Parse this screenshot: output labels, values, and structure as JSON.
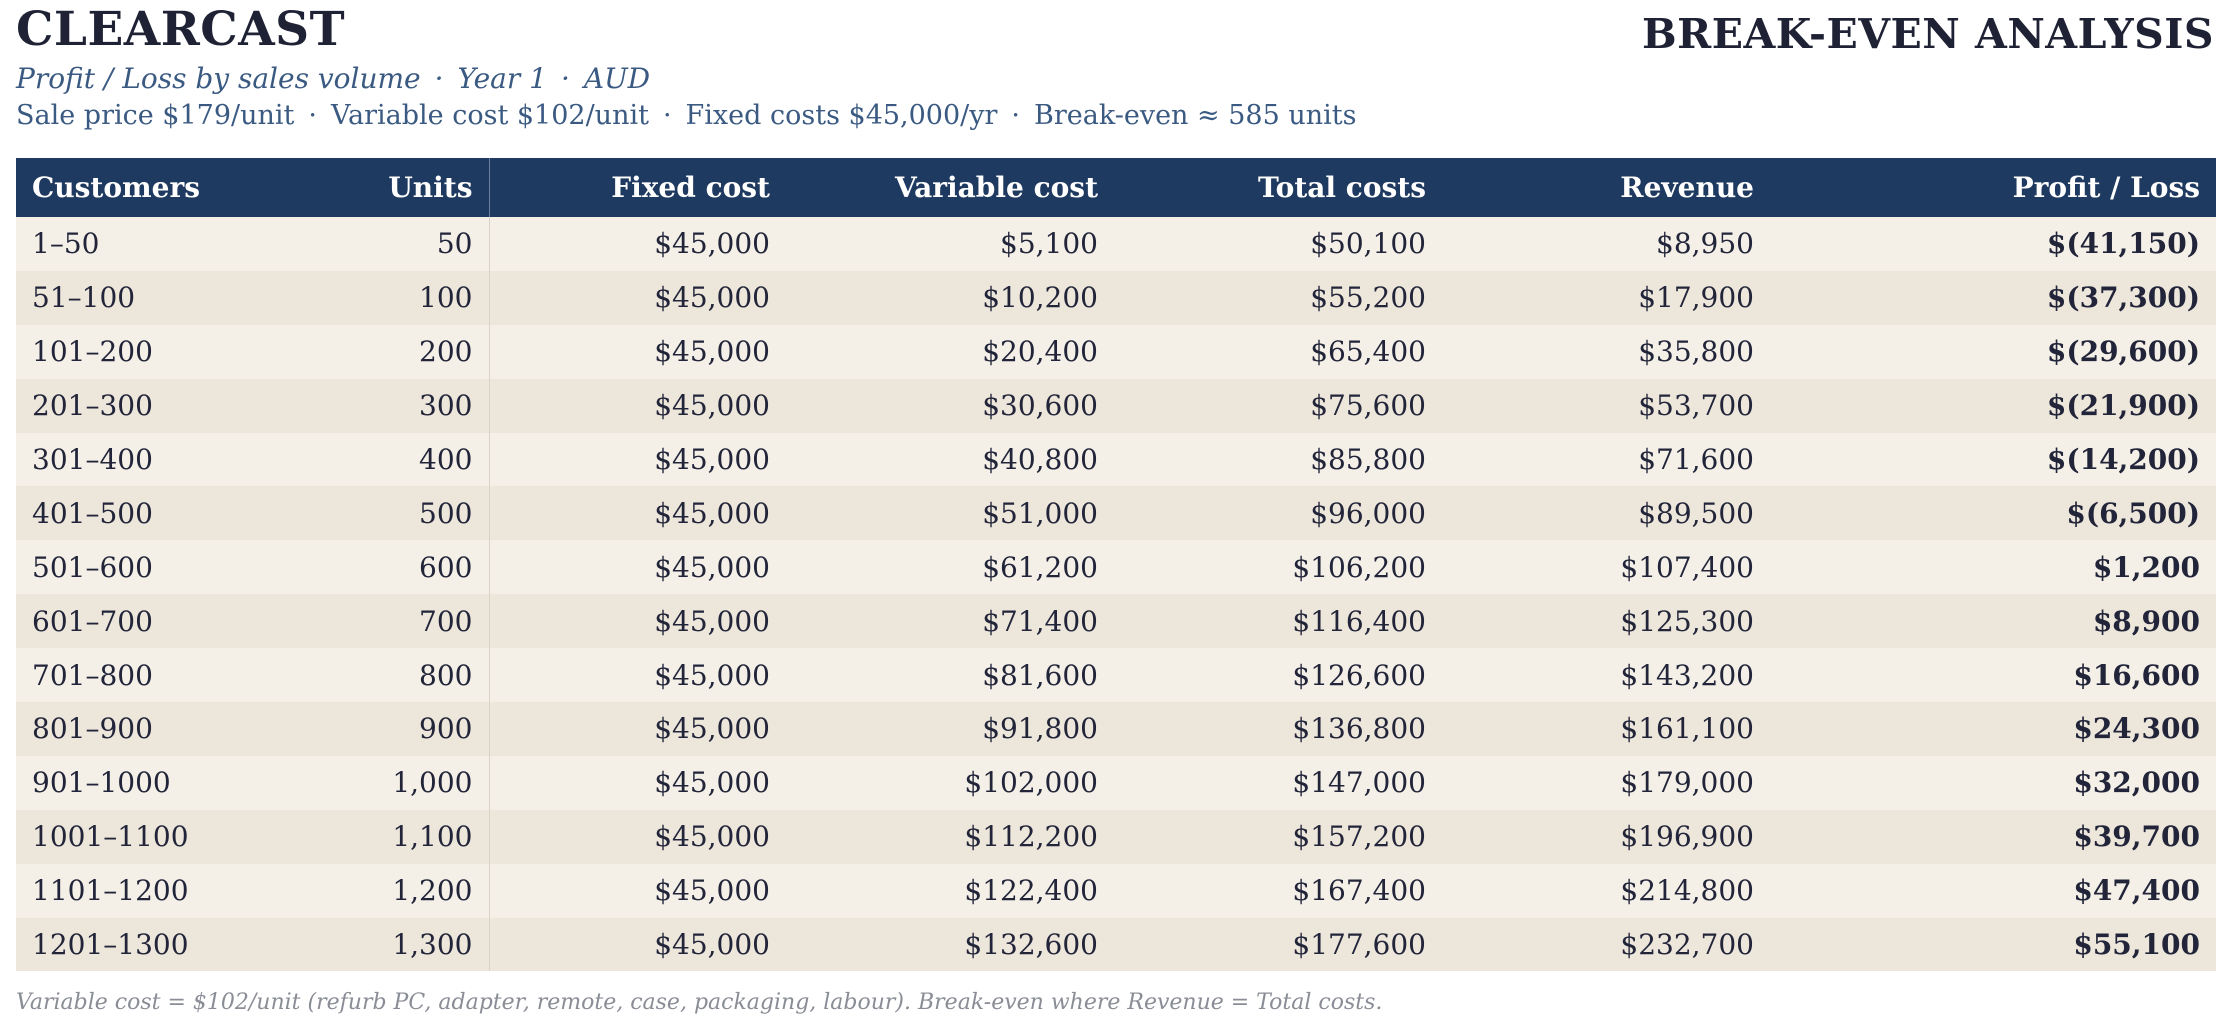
{
  "header": {
    "brand": "CLEARCAST",
    "title": "BREAK-EVEN ANALYSIS",
    "subtitle_parts": [
      "Profit / Loss by sales volume",
      "Year 1",
      "AUD"
    ],
    "separator": "·",
    "params": [
      "Sale price $179/unit",
      "Variable cost $102/unit",
      "Fixed costs $45,000/yr",
      "Break-even ≈ 585 units"
    ]
  },
  "table": {
    "columns": [
      "Customers",
      "Units",
      "Fixed cost",
      "Variable cost",
      "Total costs",
      "Revenue",
      "Profit / Loss"
    ],
    "rows": [
      {
        "customers": "1–50",
        "units": "50",
        "fixed": "$45,000",
        "variable": "$5,100",
        "total": "$50,100",
        "revenue": "$8,950",
        "profit": "$(41,150)",
        "sign": "neg"
      },
      {
        "customers": "51–100",
        "units": "100",
        "fixed": "$45,000",
        "variable": "$10,200",
        "total": "$55,200",
        "revenue": "$17,900",
        "profit": "$(37,300)",
        "sign": "neg"
      },
      {
        "customers": "101–200",
        "units": "200",
        "fixed": "$45,000",
        "variable": "$20,400",
        "total": "$65,400",
        "revenue": "$35,800",
        "profit": "$(29,600)",
        "sign": "neg"
      },
      {
        "customers": "201–300",
        "units": "300",
        "fixed": "$45,000",
        "variable": "$30,600",
        "total": "$75,600",
        "revenue": "$53,700",
        "profit": "$(21,900)",
        "sign": "neg"
      },
      {
        "customers": "301–400",
        "units": "400",
        "fixed": "$45,000",
        "variable": "$40,800",
        "total": "$85,800",
        "revenue": "$71,600",
        "profit": "$(14,200)",
        "sign": "neg"
      },
      {
        "customers": "401–500",
        "units": "500",
        "fixed": "$45,000",
        "variable": "$51,000",
        "total": "$96,000",
        "revenue": "$89,500",
        "profit": "$(6,500)",
        "sign": "neg"
      },
      {
        "customers": "501–600",
        "units": "600",
        "fixed": "$45,000",
        "variable": "$61,200",
        "total": "$106,200",
        "revenue": "$107,400",
        "profit": "$1,200",
        "sign": "pos"
      },
      {
        "customers": "601–700",
        "units": "700",
        "fixed": "$45,000",
        "variable": "$71,400",
        "total": "$116,400",
        "revenue": "$125,300",
        "profit": "$8,900",
        "sign": "pos"
      },
      {
        "customers": "701–800",
        "units": "800",
        "fixed": "$45,000",
        "variable": "$81,600",
        "total": "$126,600",
        "revenue": "$143,200",
        "profit": "$16,600",
        "sign": "pos"
      },
      {
        "customers": "801–900",
        "units": "900",
        "fixed": "$45,000",
        "variable": "$91,800",
        "total": "$136,800",
        "revenue": "$161,100",
        "profit": "$24,300",
        "sign": "pos"
      },
      {
        "customers": "901–1000",
        "units": "1,000",
        "fixed": "$45,000",
        "variable": "$102,000",
        "total": "$147,000",
        "revenue": "$179,000",
        "profit": "$32,000",
        "sign": "pos"
      },
      {
        "customers": "1001–1100",
        "units": "1,100",
        "fixed": "$45,000",
        "variable": "$112,200",
        "total": "$157,200",
        "revenue": "$196,900",
        "profit": "$39,700",
        "sign": "pos"
      },
      {
        "customers": "1101–1200",
        "units": "1,200",
        "fixed": "$45,000",
        "variable": "$122,400",
        "total": "$167,400",
        "revenue": "$214,800",
        "profit": "$47,400",
        "sign": "pos"
      },
      {
        "customers": "1201–1300",
        "units": "1,300",
        "fixed": "$45,000",
        "variable": "$132,600",
        "total": "$177,600",
        "revenue": "$232,700",
        "profit": "$55,100",
        "sign": "pos"
      }
    ]
  },
  "colors": {
    "header_bg": "#1f3a60",
    "loss": "#b03a32",
    "profit": "#1e7a3c",
    "row_odd": "#f4f0e7",
    "row_even": "#ede6da"
  },
  "footnote": "Variable cost = $102/unit (refurb PC, adapter, remote, case, packaging, labour). Break-even where Revenue = Total costs."
}
